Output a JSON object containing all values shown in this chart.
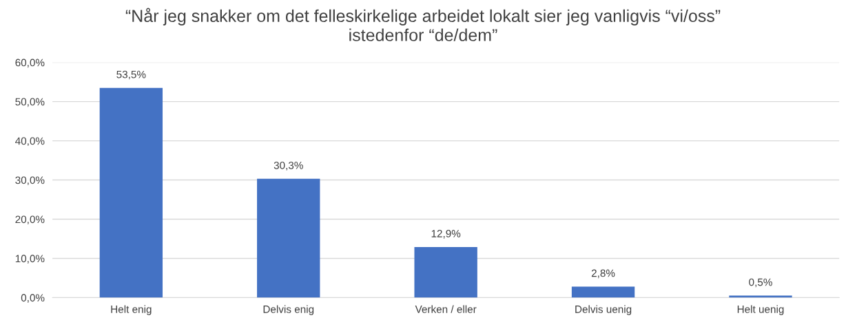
{
  "chart_data": {
    "type": "bar",
    "title": "“Når jeg snakker om det felleskirkelige arbeidet lokalt sier jeg vanligvis “vi/oss”\nistedenfor “de/dem”",
    "categories": [
      "Helt enig",
      "Delvis enig",
      "Verken / eller",
      "Delvis uenig",
      "Helt uenig"
    ],
    "values": [
      53.5,
      30.3,
      12.9,
      2.8,
      0.5
    ],
    "value_labels": [
      "53,5%",
      "30,3%",
      "12,9%",
      "2,8%",
      "0,5%"
    ],
    "color": "#4472c4",
    "ylim": [
      0,
      60
    ],
    "yticks": [
      {
        "value": 0,
        "label": "0,0%"
      },
      {
        "value": 10,
        "label": "10,0%"
      },
      {
        "value": 20,
        "label": "20,0%"
      },
      {
        "value": 30,
        "label": "30,0%"
      },
      {
        "value": 40,
        "label": "40,0%"
      },
      {
        "value": 50,
        "label": "50,0%"
      },
      {
        "value": 60,
        "label": "60,0%"
      }
    ],
    "grid": "y"
  }
}
